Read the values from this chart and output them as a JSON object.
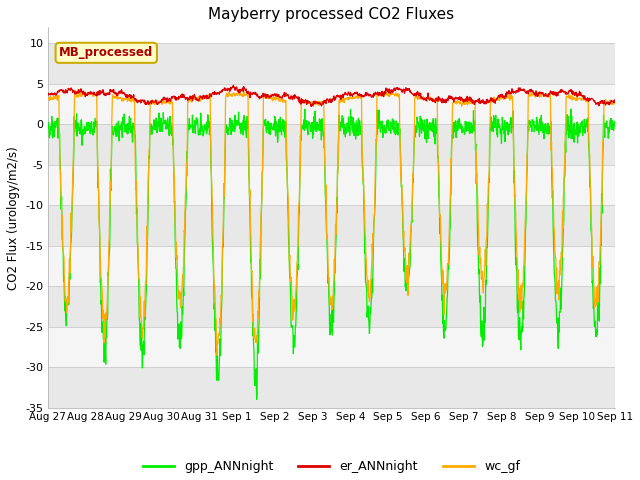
{
  "title": "Mayberry processed CO2 Fluxes",
  "ylabel": "CO2 Flux (urology/m2/s)",
  "ylim": [
    -35,
    12
  ],
  "yticks": [
    -35,
    -30,
    -25,
    -20,
    -15,
    -10,
    -5,
    0,
    5,
    10
  ],
  "fig_bg_color": "#ffffff",
  "plot_bg_color": "#ffffff",
  "grid_color": "#dddddd",
  "legend_label": "MB_processed",
  "legend_box_color": "#ffffcc",
  "legend_box_edge": "#ccaa00",
  "legend_text_color": "#aa0000",
  "line_colors": {
    "gpp": "#00ee00",
    "er": "#dd0000",
    "wc": "#ffaa00"
  },
  "line_labels": [
    "gpp_ANNnight",
    "er_ANNnight",
    "wc_gf"
  ],
  "n_days": 15,
  "x_tick_labels": [
    "Aug 27",
    "Aug 28",
    "Aug 29",
    "Aug 30",
    "Aug 31",
    "Sep 1",
    "Sep 2",
    "Sep 3",
    "Sep 4",
    "Sep 5",
    "Sep 6",
    "Sep 7",
    "Sep 8",
    "Sep 9",
    "Sep 10",
    "Sep 11"
  ],
  "x_tick_positions": [
    0,
    1,
    2,
    3,
    4,
    5,
    6,
    7,
    8,
    9,
    10,
    11,
    12,
    13,
    14,
    15
  ]
}
